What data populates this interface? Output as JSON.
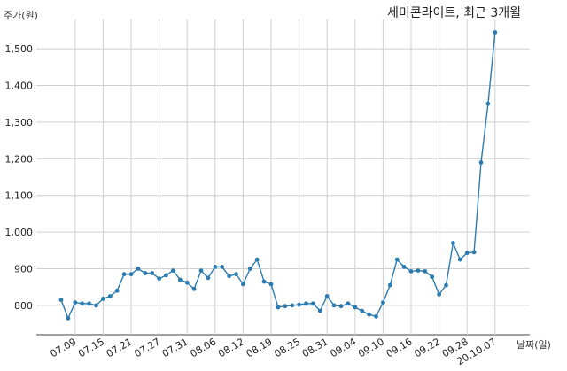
{
  "chart_data": {
    "type": "line",
    "title": "세미콘라이트, 최근 3개월",
    "ylabel": "주가(원)",
    "xlabel": "날짜(일)",
    "ylim": [
      720,
      1580
    ],
    "yticks": [
      800,
      900,
      1000,
      1100,
      1200,
      1300,
      1400,
      1500
    ],
    "ytick_labels": [
      "800",
      "900",
      "1,000",
      "1,100",
      "1,200",
      "1,300",
      "1,400",
      "1,500"
    ],
    "xtick_labels": [
      "07.09",
      "07.15",
      "07.21",
      "07.27",
      "07.31",
      "08.06",
      "08.12",
      "08.19",
      "08.25",
      "08.31",
      "09.04",
      "09.10",
      "09.16",
      "09.22",
      "09.28",
      "20.10.07"
    ],
    "xtick_index": [
      2,
      6,
      10,
      14,
      18,
      22,
      26,
      30,
      34,
      38,
      42,
      46,
      50,
      54,
      58,
      62
    ],
    "grid": true,
    "color": "#2b7bb0",
    "series": [
      {
        "values": [
          815,
          765,
          808,
          805,
          805,
          800,
          818,
          825,
          840,
          885,
          885,
          900,
          888,
          888,
          873,
          882,
          895,
          870,
          862,
          845,
          895,
          875,
          905,
          905,
          880,
          885,
          858,
          900,
          925,
          865,
          858,
          795,
          798,
          800,
          802,
          805,
          805,
          785,
          825,
          800,
          798,
          805,
          795,
          785,
          775,
          770,
          808,
          855,
          925,
          905,
          893,
          895,
          893,
          878,
          830,
          855,
          970,
          925,
          943,
          945,
          1190,
          1350,
          1545
        ]
      }
    ]
  }
}
